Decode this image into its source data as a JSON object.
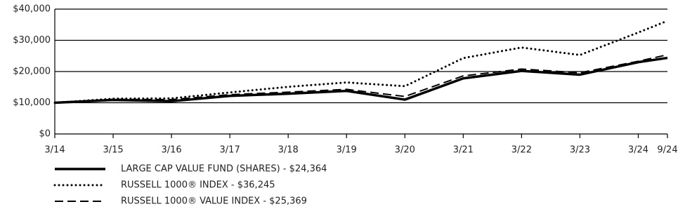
{
  "chart_data": {
    "type": "line",
    "x": [
      "3/14",
      "3/15",
      "3/16",
      "3/17",
      "3/18",
      "3/19",
      "3/20",
      "3/21",
      "3/22",
      "3/23",
      "3/24",
      "9/24"
    ],
    "series": [
      {
        "name": "LARGE CAP VALUE FUND (SHARES) - $24,364",
        "color": "#000000",
        "style": "solid",
        "values": [
          10000,
          10900,
          10500,
          12200,
          12900,
          13800,
          11000,
          17800,
          20200,
          19000,
          23000,
          24364
        ]
      },
      {
        "name": "RUSSELL 1000® INDEX - $36,245",
        "color": "#000000",
        "style": "dotted",
        "values": [
          10000,
          11300,
          11400,
          13300,
          15100,
          16500,
          15300,
          24300,
          27700,
          25300,
          32500,
          36245
        ]
      },
      {
        "name": "RUSSELL 1000® VALUE INDEX - $25,369",
        "color": "#000000",
        "style": "dashed",
        "values": [
          10000,
          11100,
          11000,
          12600,
          13400,
          14300,
          12000,
          18600,
          20800,
          19600,
          23300,
          25369
        ]
      }
    ],
    "ylim": [
      0,
      40000
    ],
    "yticks": [
      {
        "value": 0,
        "label": "$0"
      },
      {
        "value": 10000,
        "label": "$10,000"
      },
      {
        "value": 20000,
        "label": "$20,000"
      },
      {
        "value": 30000,
        "label": "$30,000"
      },
      {
        "value": 40000,
        "label": "$40,000"
      }
    ],
    "grid": true
  }
}
